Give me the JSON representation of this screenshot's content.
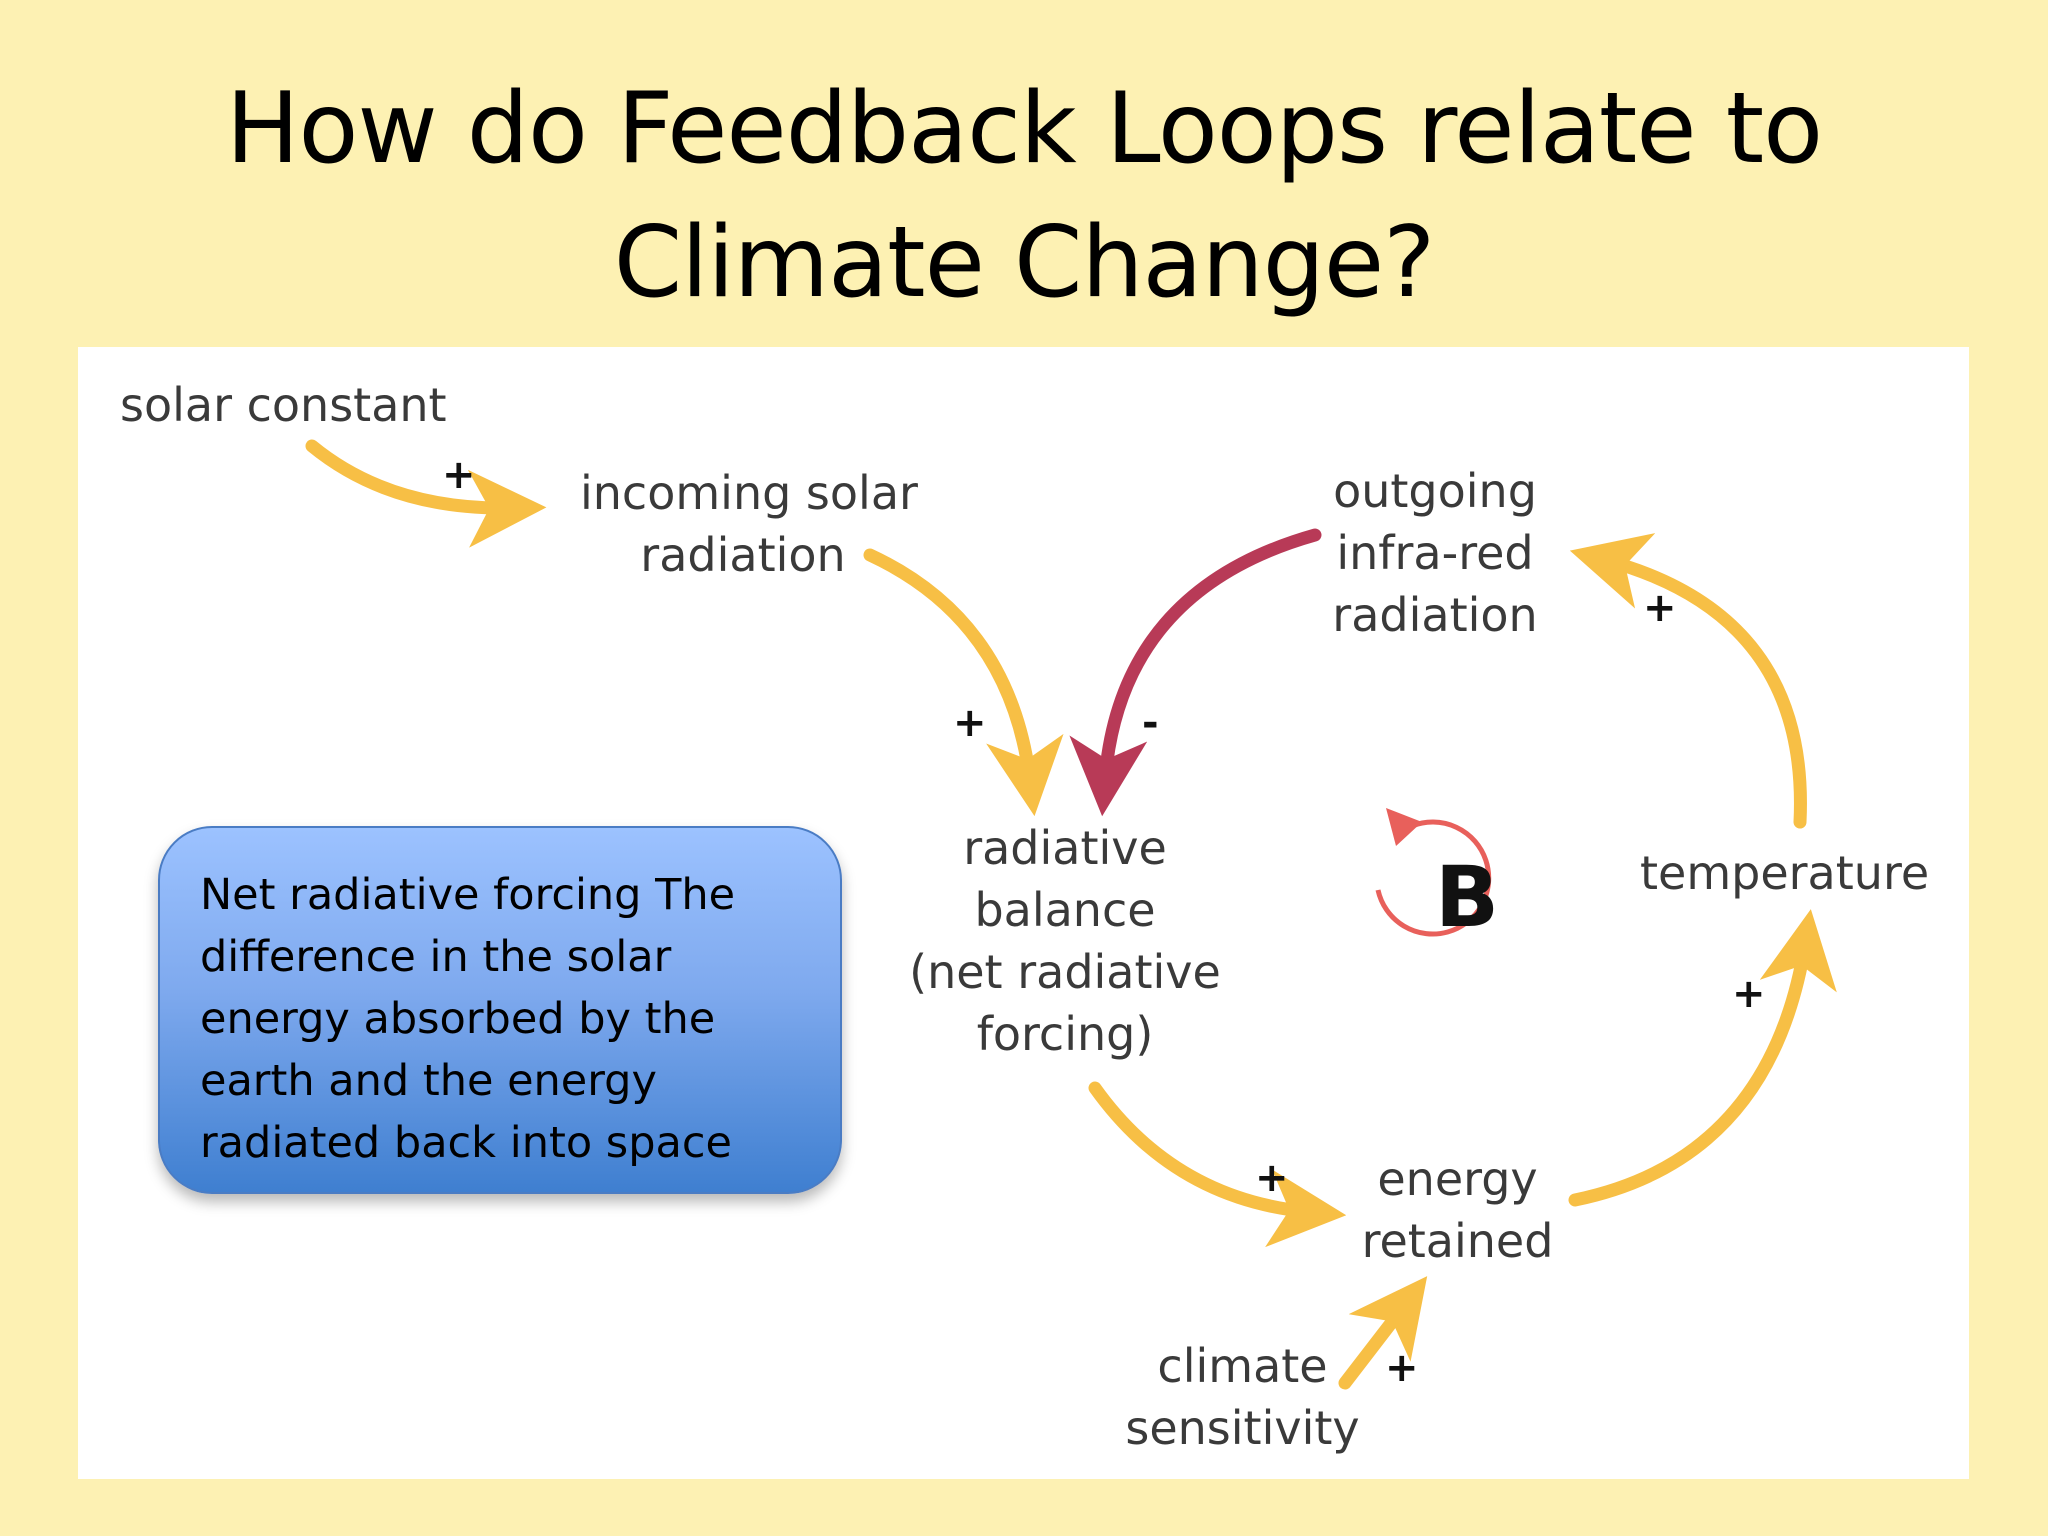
{
  "slide": {
    "title_line1": "How do Feedback Loops relate to",
    "title_line2": "Climate Change?"
  },
  "diagram": {
    "nodes": {
      "solar_constant": "solar constant",
      "incoming_line1": "incoming solar",
      "incoming_line2": "radiation",
      "outgoing_line1": "outgoing",
      "outgoing_line2": "infra-red",
      "outgoing_line3": "radiation",
      "radiative_line1": "radiative",
      "radiative_line2": "balance",
      "radiative_line3": "(net radiative",
      "radiative_line4": "forcing)",
      "temperature": "temperature",
      "energy_line1": "energy",
      "energy_line2": "retained",
      "climate_line1": "climate",
      "climate_line2": "sensitivity"
    },
    "loop_label": "B",
    "links": [
      {
        "from": "solar constant",
        "to": "incoming solar radiation",
        "polarity": "+"
      },
      {
        "from": "incoming solar radiation",
        "to": "radiative balance",
        "polarity": "+"
      },
      {
        "from": "outgoing infra-red radiation",
        "to": "radiative balance",
        "polarity": "-"
      },
      {
        "from": "temperature",
        "to": "outgoing infra-red radiation",
        "polarity": "+"
      },
      {
        "from": "energy retained",
        "to": "temperature",
        "polarity": "+"
      },
      {
        "from": "radiative balance",
        "to": "energy retained",
        "polarity": "+"
      },
      {
        "from": "climate sensitivity",
        "to": "energy retained",
        "polarity": "+"
      }
    ],
    "colors": {
      "positive_arrow": "#f7bf45",
      "negative_arrow": "#b83a57",
      "loop_arrow": "#e8605b"
    }
  },
  "callout": {
    "text": "Net radiative forcing The difference in the solar energy absorbed by the earth and the energy radiated back into space"
  }
}
